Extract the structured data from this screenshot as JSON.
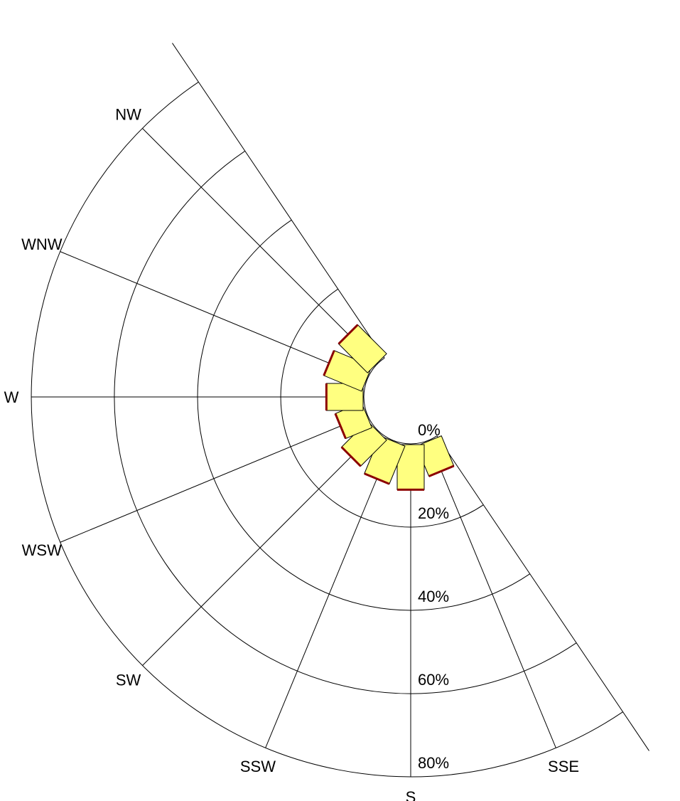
{
  "chart_data": {
    "type": "windrose",
    "title": "",
    "direction_labels": [
      "SSE",
      "S",
      "SSW",
      "SW",
      "WSW",
      "W",
      "WNW",
      "NW"
    ],
    "directions": [
      {
        "label": "SSE",
        "bearing": 157.5,
        "value": 8
      },
      {
        "label": "S",
        "bearing": 180,
        "value": 11
      },
      {
        "label": "SSW",
        "bearing": 202.5,
        "value": 10
      },
      {
        "label": "SW",
        "bearing": 225,
        "value": 9
      },
      {
        "label": "WSW",
        "bearing": 247.5,
        "value": 7
      },
      {
        "label": "W",
        "bearing": 270,
        "value": 9
      },
      {
        "label": "WNW",
        "bearing": 292.5,
        "value": 10
      },
      {
        "label": "NW",
        "bearing": 315,
        "value": 10
      }
    ],
    "radial_ticks": [
      {
        "value": 0,
        "label": "0%"
      },
      {
        "value": 20,
        "label": "20%"
      },
      {
        "value": 40,
        "label": "40%"
      },
      {
        "value": 60,
        "label": "60%"
      },
      {
        "value": 80,
        "label": "80%"
      }
    ],
    "sector_start_bearing": 146,
    "sector_end_bearing": 326,
    "radial_max": 80,
    "colors": {
      "fill": "#ffff80",
      "edge": "#8b0000",
      "line": "#000000"
    },
    "grid": true
  }
}
